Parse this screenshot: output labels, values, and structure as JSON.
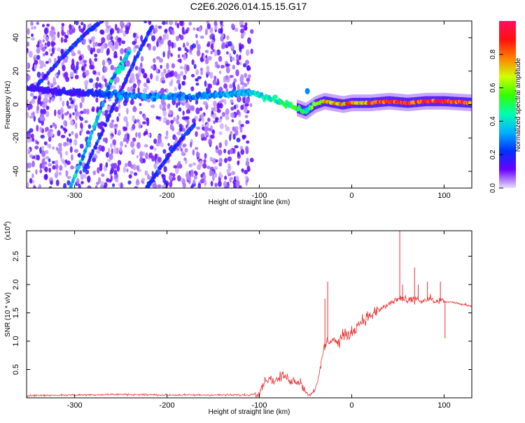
{
  "title": "C2E6.2026.014.15.15.G17",
  "chart_data": [
    {
      "type": "heatmap",
      "xlabel": "Height of straight line (km)",
      "ylabel": "Frequency (Hz)",
      "xlim": [
        -352,
        130
      ],
      "ylim": [
        -50,
        50
      ],
      "xticks": [
        -300,
        -200,
        -100,
        0,
        100
      ],
      "yticks": [
        -40,
        -20,
        0,
        20,
        40
      ],
      "colorbar": {
        "label": "Normalized spectral amplitude",
        "range": [
          0,
          1
        ],
        "ticks": [
          "0.0",
          "0.2",
          "0.4",
          "0.6",
          "0.8"
        ],
        "tick_values": [
          0.0,
          0.2,
          0.4,
          0.6,
          0.8
        ],
        "colors": [
          "#e8e0ff",
          "#6a00ff",
          "#0030ff",
          "#00b0ff",
          "#00ffb0",
          "#30ff00",
          "#d0ff00",
          "#ff8000",
          "#ff1010",
          "#ff1060"
        ]
      },
      "noise_region_x": [
        -352,
        -108
      ],
      "streaks": [
        {
          "x": [
            -305,
            -290,
            -275,
            -262,
            -250,
            -240
          ],
          "y": [
            -50,
            -30,
            -8,
            12,
            24,
            32
          ],
          "intensity": 0.35
        },
        {
          "x": [
            -340,
            -320,
            -300,
            -285,
            -270
          ],
          "y": [
            12,
            24,
            36,
            44,
            50
          ],
          "intensity": 0.2
        },
        {
          "x": [
            -290,
            -280,
            -265,
            -252,
            -240,
            -228,
            -215
          ],
          "y": [
            -40,
            -28,
            -10,
            6,
            20,
            34,
            48
          ],
          "intensity": 0.2
        },
        {
          "x": [
            -222,
            -210,
            -195,
            -180,
            -170
          ],
          "y": [
            -50,
            -40,
            -28,
            -18,
            -12
          ],
          "intensity": 0.2
        }
      ],
      "trace": {
        "x": [
          -352,
          -320,
          -290,
          -260,
          -230,
          -200,
          -170,
          -140,
          -120,
          -110,
          -100,
          -90,
          -80,
          -70,
          -60,
          -50,
          -40,
          -30,
          -20,
          -10,
          0,
          20,
          40,
          60,
          80,
          100,
          130
        ],
        "y": [
          10,
          8,
          7,
          6,
          5,
          5,
          5,
          6,
          7,
          7,
          6,
          4,
          2,
          0,
          -2,
          -4,
          0,
          2,
          1,
          0,
          1,
          1,
          2,
          1,
          2,
          2,
          1
        ],
        "intensity": [
          0.15,
          0.15,
          0.18,
          0.25,
          0.3,
          0.3,
          0.28,
          0.3,
          0.35,
          0.35,
          0.4,
          0.45,
          0.45,
          0.45,
          0.5,
          0.45,
          0.55,
          0.65,
          0.75,
          0.75,
          0.8,
          0.8,
          0.82,
          0.85,
          0.88,
          0.9,
          0.85
        ]
      },
      "hotspots": [
        {
          "x": -252,
          "y": 20,
          "v": 0.45
        },
        {
          "x": -248,
          "y": 22,
          "v": 0.4
        },
        {
          "x": -225,
          "y": 5,
          "v": 0.35
        },
        {
          "x": -250,
          "y": 4,
          "v": 0.35
        },
        {
          "x": -160,
          "y": 5,
          "v": 0.3
        },
        {
          "x": -48,
          "y": 8,
          "v": 0.3
        }
      ]
    },
    {
      "type": "line",
      "xlabel": "Height of straight line (km)",
      "ylabel": "SNR (10 * v/v)",
      "y_multiplier": "(x10",
      "y_multiplier_exp": "4",
      "y_multiplier_close": ")",
      "xlim": [
        -352,
        130
      ],
      "ylim": [
        0,
        2.95
      ],
      "xticks": [
        -300,
        -200,
        -100,
        0,
        100
      ],
      "yticks": [
        0.5,
        1.0,
        1.5,
        2.0,
        2.5
      ],
      "ytick_labels": [
        "0.5",
        "1.0",
        "1.5",
        "2.0",
        "2.5"
      ],
      "color": "#e83030",
      "series": [
        {
          "name": "SNR",
          "x": [
            -352,
            -300,
            -250,
            -200,
            -150,
            -110,
            -100,
            -95,
            -90,
            -85,
            -80,
            -75,
            -70,
            -65,
            -60,
            -55,
            -50,
            -45,
            -40,
            -35,
            -30,
            -25,
            -20,
            -15,
            -10,
            -5,
            0,
            10,
            20,
            30,
            40,
            45,
            50,
            55,
            60,
            65,
            70,
            75,
            80,
            85,
            90,
            95,
            100,
            110,
            120,
            130
          ],
          "y": [
            0.04,
            0.05,
            0.06,
            0.05,
            0.05,
            0.05,
            0.1,
            0.28,
            0.35,
            0.3,
            0.32,
            0.4,
            0.35,
            0.3,
            0.3,
            0.28,
            0.1,
            0.05,
            0.15,
            0.4,
            0.9,
            1.0,
            1.05,
            0.95,
            1.1,
            1.1,
            1.15,
            1.35,
            1.45,
            1.55,
            1.65,
            1.7,
            1.75,
            1.75,
            1.7,
            1.72,
            1.75,
            1.7,
            1.72,
            1.75,
            1.68,
            1.72,
            1.7,
            1.68,
            1.65,
            1.62
          ]
        }
      ],
      "spikes": [
        {
          "x": -29,
          "y": 1.75
        },
        {
          "x": -26,
          "y": 2.05
        },
        {
          "x": 52,
          "y": 2.95
        },
        {
          "x": 55,
          "y": 2.0
        },
        {
          "x": 68,
          "y": 2.3
        },
        {
          "x": 72,
          "y": 2.0
        },
        {
          "x": 82,
          "y": 2.05
        },
        {
          "x": 96,
          "y": 2.05
        },
        {
          "x": 101,
          "y": 1.05
        }
      ]
    }
  ]
}
